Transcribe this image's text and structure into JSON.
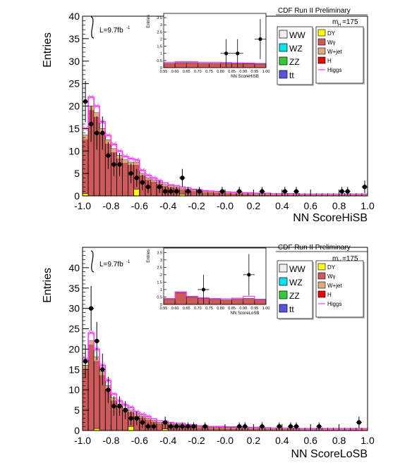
{
  "colors": {
    "WW": "#f0f0f0",
    "WZ": "#00e5ee",
    "ZZ": "#33cc33",
    "ttbar": "#5555dd",
    "DY": "#ffff00",
    "Wgamma": "#cc5a5a",
    "Wjet": "#d9ac82",
    "H": "#ee0000",
    "Higgs": "#ff33ff"
  },
  "chart_data": [
    {
      "type": "bar",
      "panel": "top",
      "xlabel": "NN ScoreHiSB",
      "ylabel": "Entries",
      "xlim": [
        -1.0,
        1.0
      ],
      "ylim": [
        0,
        40
      ],
      "grid": false,
      "xticks": [
        "-1.0",
        "-0.8",
        "-0.6",
        "-0.4",
        "-0.2",
        "-0.0",
        "0.2",
        "0.4",
        "0.6",
        "0.8",
        "1.0"
      ],
      "yticks": [
        "0",
        "5",
        "10",
        "15",
        "20",
        "25",
        "30",
        "35",
        "40"
      ],
      "lumi_label": "L=9.7fb",
      "lumi_superscript": "-1",
      "header": "CDF Run II Preliminary",
      "mass_label": "m",
      "mass_sub": "H",
      "mass_value": "=175",
      "legend_left": [
        "WW",
        "WZ",
        "ZZ",
        "tt"
      ],
      "legend_right": [
        "DY",
        "Wγ",
        "W+jet",
        "H",
        "Higgs"
      ],
      "bin_width": 0.04,
      "bin_low": [
        -1.0,
        -0.96,
        -0.92,
        -0.88,
        -0.84,
        -0.8,
        -0.76,
        -0.72,
        -0.68,
        -0.64,
        -0.6,
        -0.56,
        -0.52,
        -0.48,
        -0.44,
        -0.4,
        -0.36,
        -0.32,
        -0.28,
        -0.24,
        -0.2,
        -0.16,
        -0.12,
        -0.08,
        -0.04,
        0.0,
        0.04,
        0.08,
        0.12,
        0.16,
        0.2,
        0.24,
        0.28,
        0.32,
        0.36,
        0.4,
        0.44,
        0.48,
        0.52,
        0.56,
        0.6,
        0.64,
        0.68,
        0.72,
        0.76,
        0.8,
        0.84,
        0.88,
        0.92,
        0.96
      ],
      "stack_total": [
        13.5,
        20.0,
        18.5,
        15.0,
        12.5,
        10.5,
        9.0,
        8.0,
        7.5,
        7.5,
        5.0,
        4.0,
        3.5,
        3.0,
        2.5,
        2.2,
        2.0,
        1.7,
        1.5,
        1.3,
        1.2,
        1.0,
        1.0,
        0.9,
        0.8,
        0.8,
        0.7,
        0.7,
        0.6,
        0.6,
        0.5,
        0.5,
        0.5,
        0.4,
        0.4,
        0.4,
        0.4,
        0.4,
        0.3,
        0.3,
        0.3,
        0.3,
        0.3,
        0.3,
        0.3,
        0.3,
        0.3,
        0.3,
        0.3,
        0.3
      ],
      "higgs": [
        15.0,
        22.0,
        20.0,
        16.5,
        13.5,
        11.5,
        10.0,
        8.8,
        8.3,
        8.0,
        5.7,
        4.6,
        4.0,
        3.4,
        2.9,
        2.5,
        2.3,
        2.0,
        1.8,
        1.5,
        1.4,
        1.2,
        1.1,
        1.0,
        0.9,
        0.9,
        0.8,
        0.8,
        0.7,
        0.7,
        0.6,
        0.6,
        0.6,
        0.5,
        0.5,
        0.5,
        0.5,
        0.5,
        0.4,
        0.4,
        0.4,
        0.4,
        0.4,
        0.4,
        0.4,
        0.4,
        0.4,
        0.4,
        0.4,
        0.4
      ],
      "dy_bins": [
        {
          "x": -1.0,
          "value": 0.5
        },
        {
          "x": -0.64,
          "value": 1.5
        },
        {
          "x": -0.32,
          "value": 0.4
        }
      ],
      "data_points": [
        {
          "x": -0.98,
          "y": 21,
          "err": 4.6
        },
        {
          "x": -0.94,
          "y": 16,
          "err": 4.0
        },
        {
          "x": -0.9,
          "y": 14,
          "err": 3.7
        },
        {
          "x": -0.86,
          "y": 14,
          "err": 3.7
        },
        {
          "x": -0.82,
          "y": 9,
          "err": 3.0
        },
        {
          "x": -0.78,
          "y": 7,
          "err": 2.6
        },
        {
          "x": -0.74,
          "y": 7,
          "err": 2.6
        },
        {
          "x": -0.66,
          "y": 5,
          "err": 2.2
        },
        {
          "x": -0.62,
          "y": 4,
          "err": 2.0
        },
        {
          "x": -0.58,
          "y": 3,
          "err": 1.7
        },
        {
          "x": -0.54,
          "y": 2,
          "err": 1.4
        },
        {
          "x": -0.46,
          "y": 2,
          "err": 1.4
        },
        {
          "x": -0.42,
          "y": 1,
          "err": 1.0
        },
        {
          "x": -0.38,
          "y": 1,
          "err": 1.0
        },
        {
          "x": -0.34,
          "y": 1,
          "err": 1.0
        },
        {
          "x": -0.3,
          "y": 4,
          "err": 2.0
        },
        {
          "x": -0.26,
          "y": 1,
          "err": 1.0
        },
        {
          "x": -0.18,
          "y": 1,
          "err": 1.0
        },
        {
          "x": -0.02,
          "y": 1,
          "err": 1.0
        },
        {
          "x": 0.1,
          "y": 1,
          "err": 1.0
        },
        {
          "x": 0.26,
          "y": 1,
          "err": 1.0
        },
        {
          "x": 0.42,
          "y": 1,
          "err": 1.0
        },
        {
          "x": 0.5,
          "y": 1,
          "err": 1.0
        },
        {
          "x": 0.82,
          "y": 1,
          "err": 1.0
        },
        {
          "x": 0.86,
          "y": 1,
          "err": 1.0
        },
        {
          "x": 0.98,
          "y": 2,
          "err": 1.4
        }
      ],
      "inset": {
        "xlabel": "NN ScoreHiSB",
        "ylabel": "Entries",
        "xlim": [
          0.55,
          1.0
        ],
        "ylim": [
          0,
          3.8
        ],
        "xticks": [
          "0.55",
          "0.60",
          "0.65",
          "0.70",
          "0.75",
          "0.80",
          "0.85",
          "0.90",
          "0.95",
          "1.00"
        ],
        "yticks": [
          "0",
          "0.5",
          "1",
          "1.5",
          "2",
          "2.5",
          "3",
          "3.5"
        ],
        "bin_low": [
          0.55,
          0.6,
          0.65,
          0.7,
          0.75,
          0.8,
          0.85,
          0.9,
          0.95
        ],
        "stack_total": [
          0.3,
          0.35,
          0.35,
          0.3,
          0.3,
          0.3,
          0.28,
          0.28,
          0.25
        ],
        "higgs": [
          0.38,
          0.42,
          0.42,
          0.38,
          0.38,
          0.36,
          0.34,
          0.33,
          0.3
        ],
        "data_points": [
          {
            "x": 0.825,
            "y": 1,
            "err": 1.0,
            "xerr": 0.025
          },
          {
            "x": 0.875,
            "y": 1,
            "err": 1.0,
            "xerr": 0.025
          },
          {
            "x": 0.975,
            "y": 2,
            "err": 1.4,
            "xerr": 0.025
          }
        ]
      }
    },
    {
      "type": "bar",
      "panel": "bottom",
      "xlabel": "NN ScoreLoSB",
      "ylabel": "Entries",
      "xlim": [
        -1.0,
        1.0
      ],
      "ylim": [
        0,
        45
      ],
      "grid": false,
      "xticks": [
        "-1.0",
        "-0.8",
        "-0.6",
        "-0.4",
        "-0.2",
        "-0.0",
        "0.2",
        "0.4",
        "0.6",
        "0.8",
        "1.0"
      ],
      "yticks": [
        "0",
        "5",
        "10",
        "15",
        "20",
        "25",
        "30",
        "35",
        "40"
      ],
      "lumi_label": "L=9.7fb",
      "lumi_superscript": "-1",
      "header": "CDF Run II Preliminary",
      "mass_label": "m",
      "mass_sub": "H",
      "mass_value": "=175",
      "legend_left": [
        "WW",
        "WZ",
        "ZZ",
        "tt"
      ],
      "legend_right": [
        "DY",
        "Wγ",
        "W+jet",
        "H",
        "Higgs"
      ],
      "bin_width": 0.04,
      "bin_low": [
        -1.0,
        -0.96,
        -0.92,
        -0.88,
        -0.84,
        -0.8,
        -0.76,
        -0.72,
        -0.68,
        -0.64,
        -0.6,
        -0.56,
        -0.52,
        -0.48,
        -0.44,
        -0.4,
        -0.36,
        -0.32,
        -0.28,
        -0.24,
        -0.2,
        -0.16,
        -0.12,
        -0.08,
        -0.04,
        0.0,
        0.04,
        0.08,
        0.12,
        0.16,
        0.2,
        0.24,
        0.28,
        0.32,
        0.36,
        0.4,
        0.44,
        0.48,
        0.52,
        0.56,
        0.6,
        0.64,
        0.68,
        0.72,
        0.76,
        0.8,
        0.84,
        0.88,
        0.92,
        0.96
      ],
      "stack_total": [
        16.0,
        22.0,
        18.0,
        14.5,
        11.0,
        8.0,
        6.5,
        5.5,
        5.0,
        4.0,
        3.5,
        3.0,
        2.5,
        2.0,
        2.0,
        1.7,
        1.5,
        1.5,
        1.3,
        1.2,
        1.0,
        1.0,
        0.8,
        0.8,
        0.8,
        0.7,
        0.7,
        0.6,
        0.6,
        0.6,
        0.6,
        0.5,
        0.5,
        0.5,
        0.5,
        0.5,
        0.5,
        0.4,
        0.4,
        0.4,
        0.4,
        0.4,
        0.4,
        0.4,
        0.4,
        0.4,
        0.4,
        0.4,
        0.4,
        0.4
      ],
      "higgs": [
        17.5,
        24.0,
        20.0,
        16.0,
        12.3,
        9.0,
        7.3,
        6.3,
        5.7,
        4.6,
        4.0,
        3.5,
        2.9,
        2.4,
        2.3,
        2.0,
        1.8,
        1.8,
        1.5,
        1.4,
        1.2,
        1.2,
        1.0,
        1.0,
        1.0,
        0.9,
        0.9,
        0.8,
        0.8,
        0.8,
        0.8,
        0.7,
        0.7,
        0.6,
        0.6,
        0.6,
        0.6,
        0.5,
        0.5,
        0.5,
        0.5,
        0.5,
        0.5,
        0.5,
        0.5,
        0.5,
        0.5,
        0.5,
        0.5,
        0.5
      ],
      "dy_bins": [
        {
          "x": -0.92,
          "value": 0.5
        },
        {
          "x": -0.68,
          "value": 1.0
        },
        {
          "x": -0.44,
          "value": 0.4
        }
      ],
      "data_points": [
        {
          "x": -0.98,
          "y": 17,
          "err": 4.1
        },
        {
          "x": -0.94,
          "y": 30,
          "err": 5.5
        },
        {
          "x": -0.9,
          "y": 22,
          "err": 4.7
        },
        {
          "x": -0.86,
          "y": 15,
          "err": 3.9
        },
        {
          "x": -0.82,
          "y": 10,
          "err": 3.2
        },
        {
          "x": -0.78,
          "y": 6,
          "err": 2.4
        },
        {
          "x": -0.74,
          "y": 6,
          "err": 2.4
        },
        {
          "x": -0.7,
          "y": 5,
          "err": 2.2
        },
        {
          "x": -0.66,
          "y": 3,
          "err": 1.7
        },
        {
          "x": -0.62,
          "y": 3,
          "err": 1.7
        },
        {
          "x": -0.58,
          "y": 2,
          "err": 1.4
        },
        {
          "x": -0.54,
          "y": 1,
          "err": 1.0
        },
        {
          "x": -0.5,
          "y": 1,
          "err": 1.0
        },
        {
          "x": -0.42,
          "y": 2,
          "err": 1.4
        },
        {
          "x": -0.38,
          "y": 1,
          "err": 1.0
        },
        {
          "x": -0.34,
          "y": 1,
          "err": 1.0
        },
        {
          "x": -0.3,
          "y": 1,
          "err": 1.0
        },
        {
          "x": -0.26,
          "y": 1,
          "err": 1.0
        },
        {
          "x": -0.22,
          "y": 1,
          "err": 1.0
        },
        {
          "x": -0.14,
          "y": 1,
          "err": 1.0
        },
        {
          "x": 0.1,
          "y": 1,
          "err": 1.0
        },
        {
          "x": 0.14,
          "y": 1,
          "err": 1.0
        },
        {
          "x": 0.26,
          "y": 1,
          "err": 1.0
        },
        {
          "x": 0.38,
          "y": 1,
          "err": 1.0
        },
        {
          "x": 0.46,
          "y": 1,
          "err": 1.0
        },
        {
          "x": 0.5,
          "y": 1,
          "err": 1.0
        },
        {
          "x": 0.66,
          "y": 1,
          "err": 1.0
        },
        {
          "x": 0.94,
          "y": 2,
          "err": 1.4
        }
      ],
      "inset": {
        "xlabel": "NN ScoreLoSB",
        "ylabel": "Entries",
        "xlim": [
          0.55,
          1.0
        ],
        "ylim": [
          0,
          3.8
        ],
        "xticks": [
          "0.55",
          "0.60",
          "0.65",
          "0.70",
          "0.75",
          "0.80",
          "0.85",
          "0.90",
          "0.95",
          "1.00"
        ],
        "yticks": [
          "0",
          "0.5",
          "1",
          "1.5",
          "2",
          "2.5",
          "3",
          "3.5"
        ],
        "bin_low": [
          0.55,
          0.6,
          0.65,
          0.7,
          0.75,
          0.8,
          0.85,
          0.9,
          0.95
        ],
        "stack_total": [
          0.35,
          0.8,
          0.5,
          0.4,
          0.35,
          0.3,
          0.35,
          0.4,
          0.3
        ],
        "higgs": [
          0.4,
          0.85,
          0.55,
          0.45,
          0.4,
          0.38,
          0.42,
          0.55,
          0.35
        ],
        "data_points": [
          {
            "x": 0.725,
            "y": 1,
            "err": 1.0,
            "xerr": 0.025
          },
          {
            "x": 0.925,
            "y": 2,
            "err": 1.4,
            "xerr": 0.025
          }
        ]
      }
    }
  ]
}
